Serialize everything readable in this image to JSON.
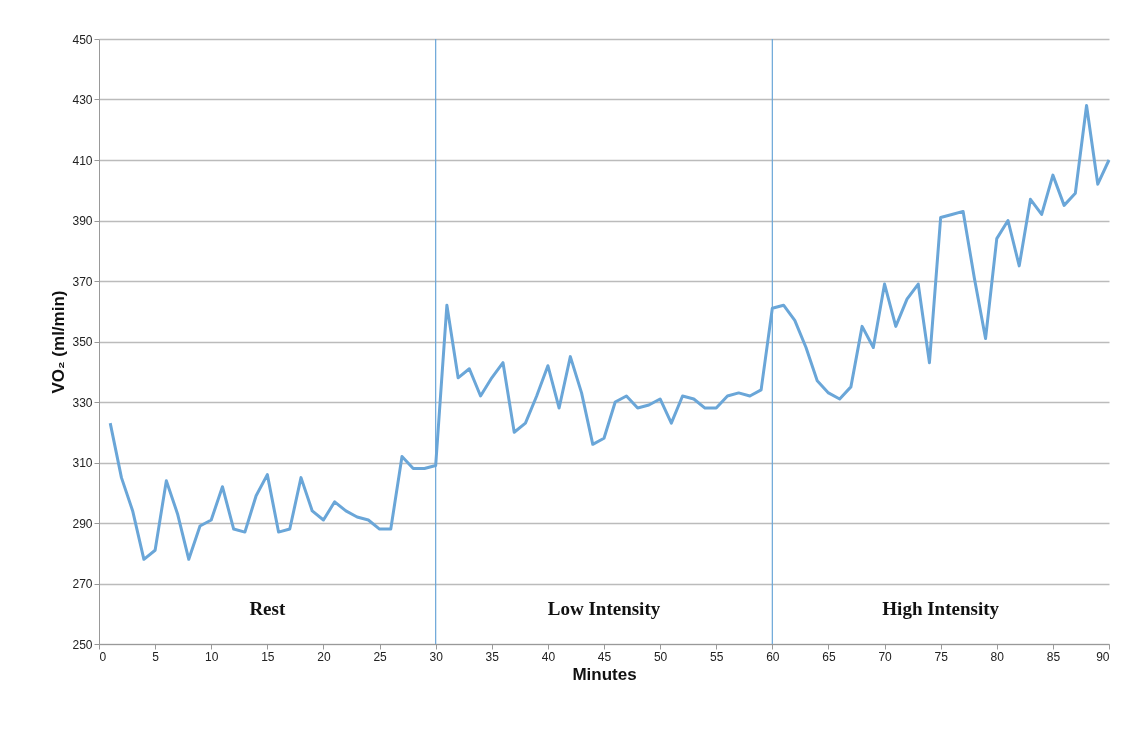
{
  "chart_data": {
    "type": "line",
    "xlabel": "Minutes",
    "ylabel": "VO₂ (ml/min)",
    "x": [
      1,
      2,
      3,
      4,
      5,
      6,
      7,
      8,
      9,
      10,
      11,
      12,
      13,
      14,
      15,
      16,
      17,
      18,
      19,
      20,
      21,
      22,
      23,
      24,
      25,
      26,
      27,
      28,
      29,
      30,
      31,
      32,
      33,
      34,
      35,
      36,
      37,
      38,
      39,
      40,
      41,
      42,
      43,
      44,
      45,
      46,
      47,
      48,
      49,
      50,
      51,
      52,
      53,
      54,
      55,
      56,
      57,
      58,
      59,
      60,
      61,
      62,
      63,
      64,
      65,
      66,
      67,
      68,
      69,
      70,
      71,
      72,
      73,
      74,
      75,
      76,
      77,
      78,
      79,
      80,
      81,
      82,
      83,
      84,
      85,
      86,
      87,
      88,
      89,
      90
    ],
    "series": [
      {
        "color": "#6aa6d8",
        "values": [
          323,
          305,
          294,
          278,
          281,
          304,
          293,
          278,
          289,
          291,
          302,
          288,
          287,
          299,
          306,
          287,
          288,
          305,
          294,
          291,
          297,
          294,
          292,
          291,
          288,
          288,
          312,
          308,
          308,
          309,
          362,
          338,
          341,
          332,
          338,
          343,
          320,
          323,
          332,
          342,
          328,
          345,
          333,
          316,
          318,
          330,
          332,
          328,
          329,
          331,
          323,
          332,
          331,
          328,
          328,
          332,
          333,
          332,
          334,
          361,
          362,
          357,
          348,
          337,
          333,
          331,
          335,
          355,
          348,
          369,
          355,
          364,
          369,
          343,
          391,
          392,
          393,
          371,
          351,
          384,
          390,
          375,
          397,
          392,
          405,
          395,
          399,
          428,
          402,
          410
        ]
      }
    ],
    "xlim": [
      0,
      90
    ],
    "xticks": [
      0,
      5,
      10,
      15,
      20,
      25,
      30,
      35,
      40,
      45,
      50,
      55,
      60,
      65,
      70,
      75,
      80,
      85,
      90
    ],
    "ylim": [
      250,
      450
    ],
    "yticks": [
      250,
      270,
      290,
      310,
      330,
      350,
      370,
      390,
      410,
      430,
      450
    ],
    "grid": "y",
    "marker": "none",
    "ref_lines": [
      {
        "axis": "x",
        "value": 30,
        "color": "#6aa6d8"
      },
      {
        "axis": "x",
        "value": 60,
        "color": "#6aa6d8"
      }
    ],
    "annotations": [
      "Rest",
      "Low Intensity",
      "High Intensity"
    ]
  }
}
